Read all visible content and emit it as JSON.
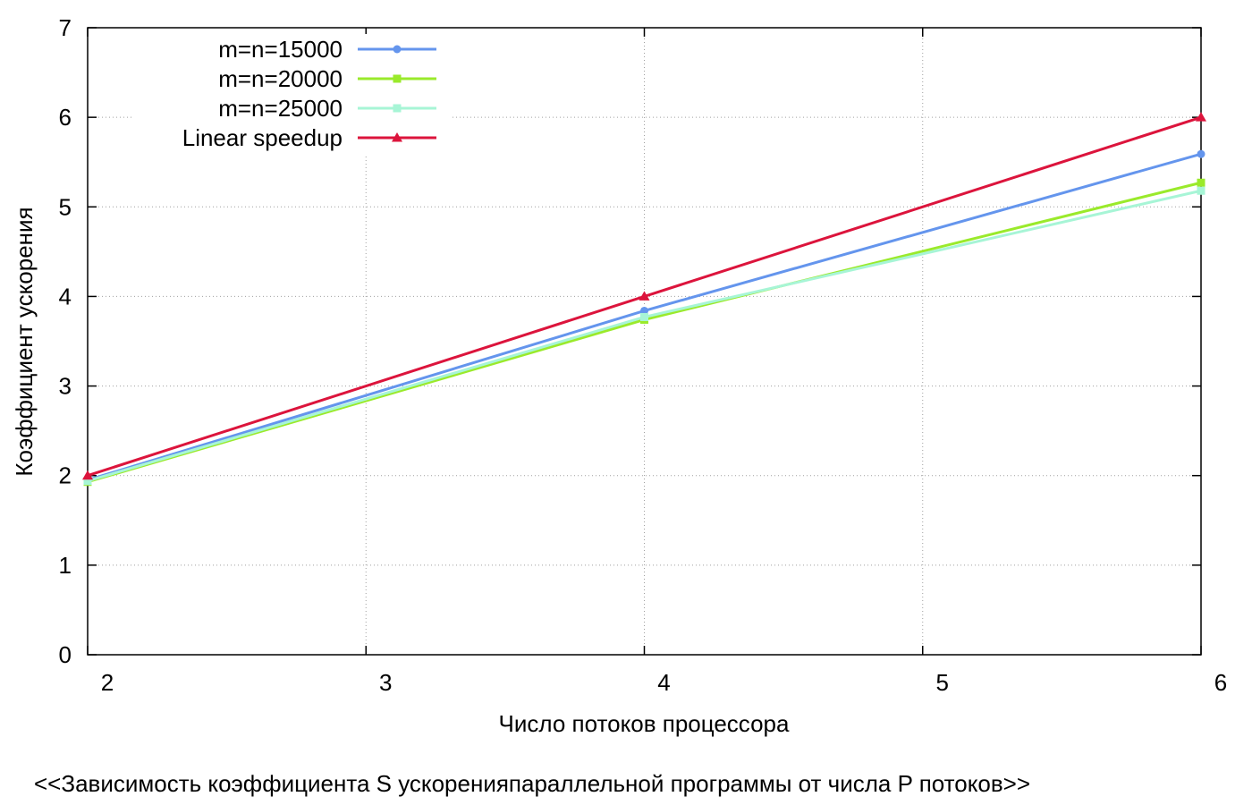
{
  "chart_data": {
    "type": "line",
    "title": "<<Зависимость коэффициента S ускоренияпараллельной программы от числа P потоков>>",
    "xlabel": "Число потоков процессора",
    "ylabel": "Коэффициент ускорения",
    "x": [
      2,
      4,
      6
    ],
    "xlim": [
      2,
      6
    ],
    "ylim": [
      0,
      7
    ],
    "xticks": [
      "2",
      "3",
      "4",
      "5",
      "6"
    ],
    "yticks": [
      "0",
      "1",
      "2",
      "3",
      "4",
      "5",
      "6",
      "7"
    ],
    "grid": true,
    "legend_position": "top-left",
    "series": [
      {
        "name": "m=n=15000",
        "values": [
          1.95,
          3.84,
          5.59
        ],
        "color": "#6495ed",
        "marker": "circle"
      },
      {
        "name": "m=n=20000",
        "values": [
          1.93,
          3.74,
          5.27
        ],
        "color": "#9aea2b",
        "marker": "square"
      },
      {
        "name": "m=n=25000",
        "values": [
          1.94,
          3.77,
          5.18
        ],
        "color": "#a7f5d6",
        "marker": "square"
      },
      {
        "name": "Linear speedup",
        "values": [
          2,
          4,
          6
        ],
        "color": "#dc143c",
        "marker": "triangle"
      }
    ]
  }
}
